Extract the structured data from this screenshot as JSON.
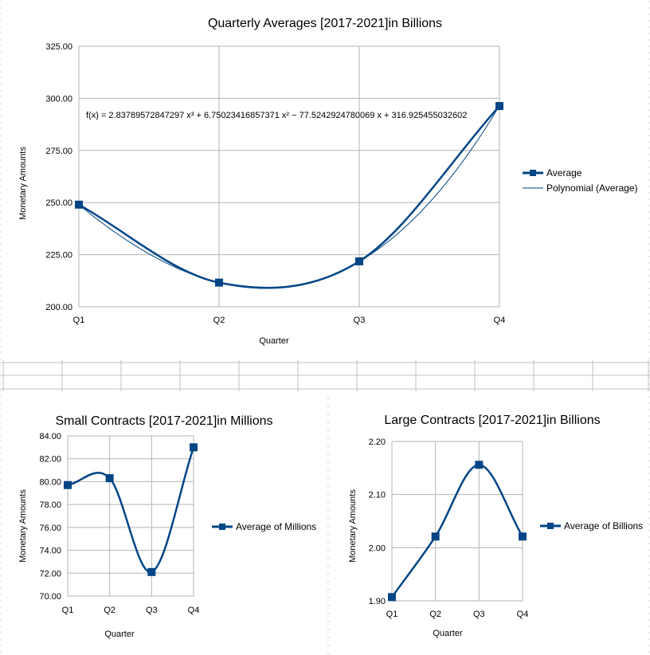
{
  "colors": {
    "series": "#004586",
    "grid": "#b3b3b3",
    "axis": "#b3b3b3",
    "sheet_grid": "#c0c0c0",
    "background": "#ffffff"
  },
  "chart_data": [
    {
      "id": "quarterly",
      "type": "line",
      "title": "Quarterly Averages [2017-2021]in Billions",
      "xlabel": "Quarter",
      "ylabel": "Monetary Amounts",
      "categories": [
        "Q1",
        "Q2",
        "Q3",
        "Q4"
      ],
      "series": [
        {
          "name": "Average",
          "values": [
            249.0,
            211.6,
            221.8,
            296.3
          ],
          "smooth": true,
          "markers": true
        },
        {
          "name": "Polynomial (Average)",
          "trendline": true
        }
      ],
      "trendline_coefficients": [
        2.83789572847297,
        6.75023416857371,
        -77.5242924780069,
        316.925455032602
      ],
      "equation": "f(x) = 2.83789572847297 x³ + 6.75023416857371 x² − 77.5242924780069 x + 316.925455032602",
      "ylim": [
        200,
        325
      ],
      "yticks": [
        "200.00",
        "225.00",
        "250.00",
        "275.00",
        "300.00",
        "325.00"
      ],
      "grid": true,
      "legend": "right"
    },
    {
      "id": "small",
      "type": "line",
      "title": "Small Contracts  [2017-2021]in Millions",
      "xlabel": "Quarter",
      "ylabel": "Monetary Amounts",
      "categories": [
        "Q1",
        "Q2",
        "Q3",
        "Q4"
      ],
      "series": [
        {
          "name": "Average of Millions",
          "values": [
            79.7,
            80.3,
            72.1,
            83.0
          ],
          "smooth": true,
          "markers": true
        }
      ],
      "ylim": [
        70,
        84
      ],
      "yticks": [
        "70.00",
        "72.00",
        "74.00",
        "76.00",
        "78.00",
        "80.00",
        "82.00",
        "84.00"
      ],
      "grid": true,
      "legend": "right"
    },
    {
      "id": "large",
      "type": "line",
      "title": "Large Contracts [2017-2021]in Billions",
      "xlabel": "Quarter",
      "ylabel": "Monetary Amounts",
      "categories": [
        "Q1",
        "Q2",
        "Q3",
        "Q4"
      ],
      "series": [
        {
          "name": "Average of Billions",
          "values": [
            1.907,
            2.021,
            2.156,
            2.021
          ],
          "smooth": true,
          "markers": true
        }
      ],
      "ylim": [
        1.9,
        2.2
      ],
      "yticks": [
        "1.90",
        "2.00",
        "2.10",
        "2.20"
      ],
      "grid": true,
      "legend": "right"
    }
  ]
}
